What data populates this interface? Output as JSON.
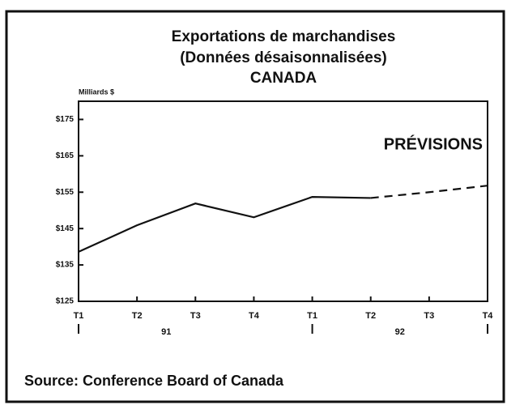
{
  "chart_data": {
    "type": "line",
    "title": [
      "Exportations de marchandises",
      "(Données désaisonnalisées)",
      "CANADA"
    ],
    "ylabel": "Milliards $",
    "categories": [
      "T1",
      "T2",
      "T3",
      "T4",
      "T1",
      "T2",
      "T3",
      "T4"
    ],
    "years": [
      "91",
      "92"
    ],
    "series": [
      {
        "color": "#111111",
        "dash": false,
        "values": [
          138.6,
          145.9,
          151.9,
          148.1,
          153.7,
          153.4,
          null,
          null
        ]
      },
      {
        "name": "PRÉVISIONS",
        "color": "#111111",
        "dash": true,
        "values": [
          null,
          null,
          null,
          null,
          null,
          153.4,
          155,
          156.8
        ]
      }
    ],
    "ylim": [
      125,
      180
    ],
    "yticks": [
      {
        "value": 125,
        "label": "$125"
      },
      {
        "value": 135,
        "label": "$135"
      },
      {
        "value": 145,
        "label": "$145"
      },
      {
        "value": 155,
        "label": "$155"
      },
      {
        "value": 165,
        "label": "$165"
      },
      {
        "value": 175,
        "label": "$175"
      }
    ],
    "source": "Source: Conference Board of Canada"
  }
}
